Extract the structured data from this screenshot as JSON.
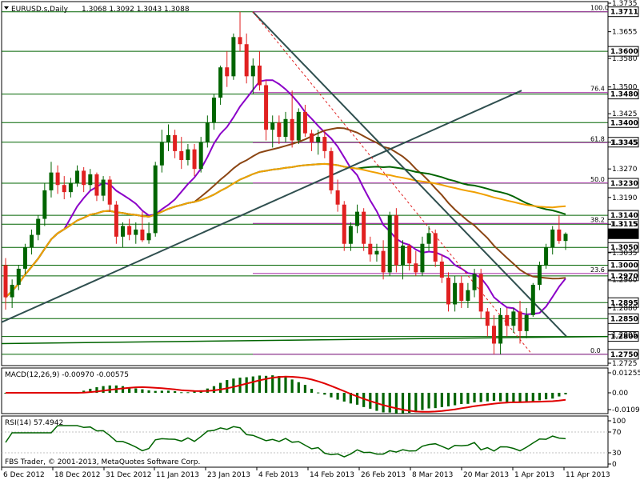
{
  "header": {
    "symbol": "EURUSD.s,Daily",
    "ohlc": "1.3068 1.3092 1.3043 1.3088"
  },
  "watermark": "FBS Trader, © 2001-2013, MetaQuotes Software Corp.",
  "colors": {
    "bull": "#006400",
    "bear": "#e02020",
    "sma_fast": "#8b00c8",
    "sma_mid": "#8b4513",
    "sma_slow": "#006400",
    "sma_long": "#f0a000",
    "trend": "#2f4f4f",
    "fib": "#a020a0",
    "level": "#006400",
    "macd_signal": "#e00000",
    "rsi": "#006400"
  },
  "chart_data": [
    {
      "type": "candlestick",
      "title": "EURUSD.s,Daily",
      "ylim": [
        1.2725,
        1.3735
      ],
      "y_ticks": [
        1.3735,
        1.3655,
        1.358,
        1.35,
        1.3425,
        1.3345,
        1.327,
        1.319,
        1.3115,
        1.3035,
        1.296,
        1.288,
        1.2805,
        1.2725
      ],
      "x_ticks": [
        "6 Dec 2012",
        "18 Dec 2012",
        "31 Dec 2012",
        "11 Jan 2013",
        "23 Jan 2013",
        "4 Feb 2013",
        "14 Feb 2013",
        "26 Feb 2013",
        "8 Mar 2013",
        "20 Mar 2013",
        "1 Apr 2013",
        "11 Apr 2013"
      ],
      "levels": [
        "1.3711",
        "1.3600",
        "1.3480",
        "1.3400",
        "1.3345",
        "1.3230",
        "1.3140",
        "1.3115",
        "1.3088",
        "1.3050",
        "1.3000",
        "1.2970",
        "1.2895",
        "1.2850",
        "1.2800",
        "1.2750"
      ],
      "fib_levels": [
        "100.0",
        "76.4",
        "61.8",
        "50.0",
        "38.2",
        "23.6",
        "0.0"
      ],
      "candles": [
        [
          1.3,
          1.302,
          1.2875,
          1.291
        ],
        [
          1.291,
          1.296,
          1.288,
          1.2945
        ],
        [
          1.2945,
          1.3,
          1.293,
          1.299
        ],
        [
          1.299,
          1.306,
          1.2975,
          1.305
        ],
        [
          1.305,
          1.31,
          1.303,
          1.3085
        ],
        [
          1.3085,
          1.314,
          1.307,
          1.313
        ],
        [
          1.313,
          1.323,
          1.311,
          1.321
        ],
        [
          1.321,
          1.329,
          1.319,
          1.326
        ],
        [
          1.326,
          1.328,
          1.32,
          1.3225
        ],
        [
          1.3225,
          1.325,
          1.3185,
          1.3205
        ],
        [
          1.3205,
          1.3245,
          1.319,
          1.323
        ],
        [
          1.323,
          1.328,
          1.322,
          1.3265
        ],
        [
          1.3265,
          1.3275,
          1.3205,
          1.3225
        ],
        [
          1.3225,
          1.327,
          1.321,
          1.3255
        ],
        [
          1.3255,
          1.326,
          1.318,
          1.3195
        ],
        [
          1.3195,
          1.325,
          1.318,
          1.324
        ],
        [
          1.324,
          1.325,
          1.315,
          1.317
        ],
        [
          1.317,
          1.318,
          1.306,
          1.308
        ],
        [
          1.308,
          1.312,
          1.305,
          1.311
        ],
        [
          1.311,
          1.313,
          1.307,
          1.3085
        ],
        [
          1.3085,
          1.312,
          1.306,
          1.31
        ],
        [
          1.31,
          1.315,
          1.3065,
          1.307
        ],
        [
          1.307,
          1.312,
          1.306,
          1.309
        ],
        [
          1.309,
          1.329,
          1.308,
          1.328
        ],
        [
          1.328,
          1.338,
          1.326,
          1.3345
        ],
        [
          1.3345,
          1.3395,
          1.332,
          1.3365
        ],
        [
          1.3365,
          1.338,
          1.33,
          1.332
        ],
        [
          1.332,
          1.336,
          1.327,
          1.3295
        ],
        [
          1.3295,
          1.334,
          1.328,
          1.3325
        ],
        [
          1.3325,
          1.334,
          1.325,
          1.327
        ],
        [
          1.327,
          1.336,
          1.326,
          1.3345
        ],
        [
          1.3345,
          1.342,
          1.333,
          1.34
        ],
        [
          1.34,
          1.348,
          1.338,
          1.347
        ],
        [
          1.347,
          1.356,
          1.345,
          1.3555
        ],
        [
          1.3555,
          1.36,
          1.35,
          1.353
        ],
        [
          1.353,
          1.365,
          1.352,
          1.364
        ],
        [
          1.364,
          1.3711,
          1.36,
          1.362
        ],
        [
          1.362,
          1.365,
          1.351,
          1.353
        ],
        [
          1.353,
          1.358,
          1.348,
          1.356
        ],
        [
          1.356,
          1.36,
          1.349,
          1.3505
        ],
        [
          1.3505,
          1.352,
          1.335,
          1.338
        ],
        [
          1.338,
          1.342,
          1.333,
          1.34
        ],
        [
          1.34,
          1.342,
          1.334,
          1.336
        ],
        [
          1.336,
          1.343,
          1.3345,
          1.341
        ],
        [
          1.341,
          1.349,
          1.333,
          1.335
        ],
        [
          1.335,
          1.344,
          1.334,
          1.343
        ],
        [
          1.343,
          1.345,
          1.336,
          1.337
        ],
        [
          1.337,
          1.338,
          1.332,
          1.3345
        ],
        [
          1.3345,
          1.338,
          1.331,
          1.336
        ],
        [
          1.336,
          1.338,
          1.33,
          1.332
        ],
        [
          1.332,
          1.333,
          1.32,
          1.321
        ],
        [
          1.321,
          1.324,
          1.315,
          1.317
        ],
        [
          1.317,
          1.318,
          1.304,
          1.306
        ],
        [
          1.306,
          1.312,
          1.304,
          1.311
        ],
        [
          1.311,
          1.317,
          1.309,
          1.315
        ],
        [
          1.315,
          1.316,
          1.304,
          1.306
        ],
        [
          1.306,
          1.308,
          1.301,
          1.303
        ],
        [
          1.303,
          1.306,
          1.301,
          1.304
        ],
        [
          1.304,
          1.307,
          1.296,
          1.298
        ],
        [
          1.298,
          1.315,
          1.297,
          1.314
        ],
        [
          1.314,
          1.316,
          1.298,
          1.3
        ],
        [
          1.3,
          1.307,
          1.296,
          1.3055
        ],
        [
          1.3055,
          1.306,
          1.2985,
          1.3005
        ],
        [
          1.3005,
          1.304,
          1.297,
          1.298
        ],
        [
          1.298,
          1.308,
          1.297,
          1.306
        ],
        [
          1.306,
          1.311,
          1.304,
          1.309
        ],
        [
          1.309,
          1.31,
          1.2995,
          1.301
        ],
        [
          1.301,
          1.303,
          1.295,
          1.2965
        ],
        [
          1.2965,
          1.298,
          1.287,
          1.289
        ],
        [
          1.289,
          1.297,
          1.287,
          1.295
        ],
        [
          1.295,
          1.297,
          1.288,
          1.29
        ],
        [
          1.29,
          1.295,
          1.288,
          1.293
        ],
        [
          1.293,
          1.299,
          1.291,
          1.2975
        ],
        [
          1.2975,
          1.299,
          1.285,
          1.287
        ],
        [
          1.287,
          1.288,
          1.28,
          1.283
        ],
        [
          1.283,
          1.286,
          1.275,
          1.278
        ],
        [
          1.278,
          1.288,
          1.275,
          1.286
        ],
        [
          1.286,
          1.288,
          1.28,
          1.283
        ],
        [
          1.283,
          1.288,
          1.281,
          1.287
        ],
        [
          1.287,
          1.29,
          1.278,
          1.2815
        ],
        [
          1.2815,
          1.288,
          1.2795,
          1.286
        ],
        [
          1.286,
          1.295,
          1.2855,
          1.2945
        ],
        [
          1.2945,
          1.301,
          1.293,
          1.3
        ],
        [
          1.3,
          1.306,
          1.299,
          1.305
        ],
        [
          1.305,
          1.311,
          1.303,
          1.31
        ],
        [
          1.31,
          1.314,
          1.306,
          1.3068
        ],
        [
          1.3068,
          1.3092,
          1.3043,
          1.3088
        ]
      ]
    },
    {
      "type": "macd",
      "title": "MACD(12,26,9) -0.00970 -0.00575",
      "y_ticks": [
        "0.01255",
        "0.00",
        "-0.01091"
      ]
    },
    {
      "type": "rsi",
      "title": "RSI(14) 57.4942",
      "y_ticks": [
        "100",
        "70",
        "30",
        "0"
      ]
    }
  ]
}
